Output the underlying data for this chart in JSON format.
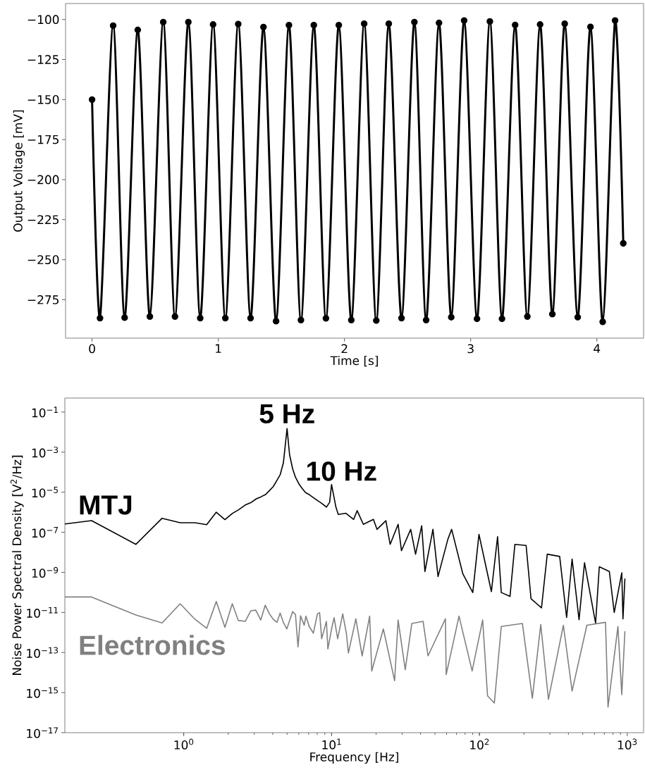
{
  "chart_data": [
    {
      "type": "line",
      "xlabel": "Time [s]",
      "ylabel": "Output Voltage [mV]",
      "marker": "circle",
      "xlim": [
        -0.21,
        4.37
      ],
      "ylim": [
        -299,
        -90
      ],
      "xticks": [
        0,
        1,
        2,
        3,
        4
      ],
      "yticks": [
        {
          "value": -275,
          "label": "−275"
        },
        {
          "value": -250,
          "label": "−250"
        },
        {
          "value": -225,
          "label": "−225"
        },
        {
          "value": -200,
          "label": "−200"
        },
        {
          "value": -175,
          "label": "−175"
        },
        {
          "value": -150,
          "label": "−150"
        },
        {
          "value": -125,
          "label": "−125"
        },
        {
          "value": -100,
          "label": "−100"
        }
      ],
      "x": [
        0,
        0.063,
        0.167,
        0.258,
        0.362,
        0.458,
        0.564,
        0.657,
        0.763,
        0.857,
        0.959,
        1.056,
        1.158,
        1.256,
        1.358,
        1.458,
        1.56,
        1.655,
        1.757,
        1.853,
        1.955,
        2.054,
        2.156,
        2.252,
        2.351,
        2.452,
        2.554,
        2.647,
        2.749,
        2.846,
        2.948,
        3.05,
        3.152,
        3.248,
        3.352,
        3.449,
        3.55,
        3.647,
        3.745,
        3.848,
        3.949,
        4.046,
        4.144,
        4.209
      ],
      "series": [
        {
          "color": "#000000",
          "values": [
            -150,
            -286.5,
            -103.8,
            -286.2,
            -106.5,
            -285.5,
            -101.6,
            -285.5,
            -101.6,
            -286.5,
            -103.1,
            -286.5,
            -102.8,
            -286.5,
            -104.7,
            -288.4,
            -103.5,
            -287.7,
            -103.5,
            -286.6,
            -103.5,
            -287.7,
            -102.6,
            -288,
            -102.6,
            -286.5,
            -101.6,
            -287.7,
            -102.1,
            -285.9,
            -100.6,
            -286.9,
            -101.2,
            -286.9,
            -103.4,
            -285.5,
            -103.1,
            -284,
            -102.6,
            -285.9,
            -104.6,
            -288.8,
            -100.6,
            -239.8
          ]
        }
      ]
    },
    {
      "type": "line",
      "xlabel": "Frequency [Hz]",
      "ylabel": "Noise Power Spectral Density [V$^{2}$/Hz]",
      "log": "xy",
      "xlim": [
        0.157,
        1290
      ],
      "ylim": [
        1e-17,
        0.5
      ],
      "xticks": [
        {
          "value": 1,
          "label": "10$^{0}$"
        },
        {
          "value": 10,
          "label": "10$^{1}$"
        },
        {
          "value": 100,
          "label": "10$^{2}$"
        },
        {
          "value": 1000,
          "label": "10$^{3}$"
        }
      ],
      "yticks": [
        {
          "value": 1e-17,
          "label": "10$^{−17}$"
        },
        {
          "value": 1e-15,
          "label": "10$^{−15}$"
        },
        {
          "value": 1e-13,
          "label": "10$^{−13}$"
        },
        {
          "value": 1e-11,
          "label": "10$^{−11}$"
        },
        {
          "value": 1e-09,
          "label": "10$^{−9}$"
        },
        {
          "value": 1e-07,
          "label": "10$^{−7}$"
        },
        {
          "value": 1e-05,
          "label": "10$^{−5}$"
        },
        {
          "value": 0.001,
          "label": "10$^{−3}$"
        },
        {
          "value": 0.1,
          "label": "10$^{−1}$"
        }
      ],
      "annotations": [
        {
          "text": "5 Hz",
          "x": 5.0,
          "y": 0.015
        },
        {
          "text": "10 Hz",
          "x": 10.0,
          "y": 2.4e-05
        }
      ],
      "series": [
        {
          "name": "MTJ",
          "color": "#000000",
          "x": [
            0.157,
            0.238,
            0.475,
            0.714,
            0.946,
            1.19,
            1.43,
            1.66,
            1.9,
            2.13,
            2.34,
            2.61,
            2.84,
            3.1,
            3.32,
            3.59,
            3.8,
            4.03,
            4.27,
            4.49,
            4.72,
            5.0,
            5.2,
            5.45,
            5.7,
            6.05,
            6.35,
            6.67,
            7.06,
            7.53,
            8.09,
            8.69,
            9.23,
            9.7,
            10.0,
            10.7,
            11.1,
            12.5,
            14.1,
            14.9,
            16.4,
            19.2,
            20.3,
            23.3,
            24.9,
            28.2,
            29.7,
            34.3,
            37.0,
            40.7,
            42.8,
            48.5,
            52.5,
            61.2,
            64.9,
            77.3,
            90.2,
            99.3,
            120.5,
            132.7,
            140.6,
            161.1,
            173.8,
            207.0,
            223.4,
            263.0,
            287.7,
            349.1,
            389.0,
            423.6,
            472.1,
            514.0,
            610.9,
            647.1,
            756.8,
            816.6,
            918.4,
            935.4,
            963.9
          ],
          "values": [
            2.6e-07,
            3.8e-07,
            2.5e-08,
            5e-07,
            3e-07,
            3e-07,
            2.4e-07,
            1e-06,
            4.3e-07,
            8.7e-07,
            1.3e-06,
            2.3e-06,
            3e-06,
            4.7e-06,
            5.8e-06,
            7.8e-06,
            1.2e-05,
            1.9e-05,
            3.9e-05,
            7.4e-05,
            0.00029,
            0.015,
            0.00074,
            0.00015,
            5.6e-05,
            2.4e-05,
            1.5e-05,
            9.5e-06,
            7.6e-06,
            5.4e-06,
            3.7e-06,
            2.6e-06,
            1.8e-06,
            3.1e-06,
            2.4e-05,
            1.8e-06,
            7.8e-07,
            8.9e-07,
            4.4e-07,
            1.2e-06,
            2.5e-07,
            4.4e-07,
            1.4e-07,
            3.8e-07,
            2.5e-08,
            2.5e-07,
            1.2e-08,
            1.4e-07,
            8.1e-09,
            2.1e-07,
            1.1e-09,
            1.4e-07,
            6.2e-10,
            4.5e-08,
            1.4e-07,
            8.3e-10,
            9.8e-11,
            7.9e-08,
            1.1e-10,
            6e-08,
            9.8e-11,
            6.3e-11,
            2.5e-08,
            2.2e-08,
            4.8e-11,
            1.7e-11,
            8.1e-09,
            6.2e-09,
            5.6e-12,
            4.6e-09,
            4.3e-12,
            3e-09,
            2.9e-12,
            1.9e-09,
            1.1e-09,
            1e-11,
            9.5e-10,
            4.8e-12,
            4.7e-10
          ]
        },
        {
          "name": "Electronics",
          "color": "#808080",
          "x": [
            0.157,
            0.238,
            0.475,
            0.714,
            0.946,
            1.19,
            1.43,
            1.66,
            1.9,
            2.13,
            2.34,
            2.61,
            2.84,
            3.07,
            3.32,
            3.56,
            3.8,
            4.03,
            4.27,
            4.49,
            4.72,
            4.98,
            5.45,
            5.7,
            5.93,
            6.17,
            6.53,
            6.71,
            7.06,
            7.53,
            8.02,
            8.3,
            8.57,
            9.23,
            9.44,
            10.0,
            10.4,
            11.0,
            11.9,
            12.6,
            13.0,
            14.6,
            16.1,
            18.1,
            18.7,
            22.4,
            26.7,
            28.2,
            31.5,
            34.9,
            41.6,
            44.9,
            58.9,
            59.6,
            72.8,
            89.3,
            105.2,
            113.5,
            126.2,
            140.6,
            195.4,
            228.0,
            260.0,
            293.1,
            369.8,
            423.6,
            533.3,
            712.8,
            741.3,
            865.0,
            918.4,
            963.9
          ],
          "values": [
            5.9e-11,
            5.9e-11,
            7.4e-12,
            3e-12,
            2.7e-11,
            4.6e-12,
            1.6e-12,
            3.5e-11,
            1.8e-12,
            2.7e-11,
            4e-12,
            3.6e-12,
            1.2e-11,
            1.3e-11,
            4.2e-12,
            2.3e-11,
            8.5e-12,
            4.6e-12,
            3.2e-12,
            9.3e-12,
            3.2e-12,
            1.5e-12,
            1.1e-11,
            7.9e-12,
            1.9e-13,
            6.8e-12,
            2.3e-12,
            6.5e-12,
            2e-12,
            9.1e-13,
            8.5e-12,
            9.8e-12,
            4.9e-13,
            3.6e-12,
            1.5e-13,
            1.5e-12,
            5.5e-12,
            4.9e-13,
            8.5e-12,
            8.7e-13,
            9.5e-14,
            4.8e-12,
            6.8e-14,
            6.5e-12,
            1.2e-14,
            1.5e-12,
            3.9e-15,
            4.2e-12,
            1.4e-14,
            2.8e-12,
            3.6e-12,
            6.8e-14,
            4.8e-12,
            7.9e-15,
            6.5e-12,
            1.2e-14,
            4.2e-12,
            6.9e-16,
            3e-16,
            2e-12,
            2.8e-12,
            5.2e-16,
            2.5e-12,
            4.6e-16,
            2.3e-12,
            1.2e-15,
            2.3e-12,
            3.2e-12,
            1.9e-16,
            2e-12,
            7.9e-16,
            1.1e-12
          ]
        }
      ]
    }
  ]
}
